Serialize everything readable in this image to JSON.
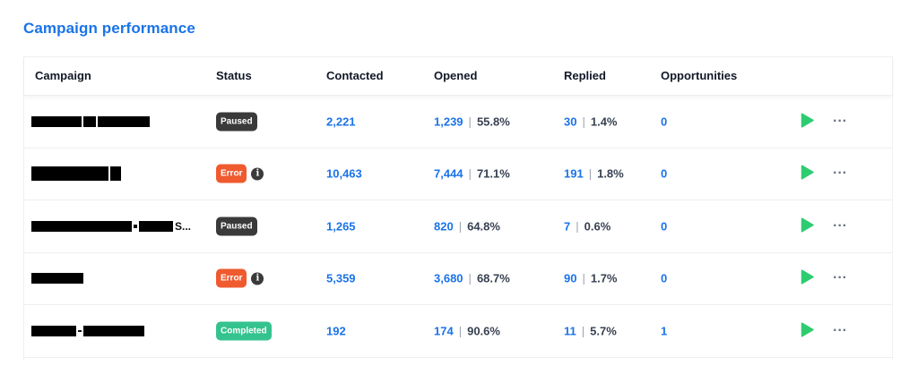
{
  "title": "Campaign performance",
  "headers": {
    "campaign": "Campaign",
    "status": "Status",
    "contacted": "Contacted",
    "opened": "Opened",
    "replied": "Replied",
    "opportunities": "Opportunities"
  },
  "colors": {
    "accent": "#1a73e8",
    "paused": "#3a3a3a",
    "error": "#ef5a2e",
    "completed": "#34c38f",
    "play": "#2ecc71"
  },
  "rows": [
    {
      "name_suffix": "",
      "status": "Paused",
      "status_class": "paused",
      "info": false,
      "contacted": "2,221",
      "opened": "1,239",
      "opened_pct": "55.8%",
      "replied": "30",
      "replied_pct": "1.4%",
      "opportunities": "0"
    },
    {
      "name_suffix": "",
      "status": "Error",
      "status_class": "error",
      "info": true,
      "contacted": "10,463",
      "opened": "7,444",
      "opened_pct": "71.1%",
      "replied": "191",
      "replied_pct": "1.8%",
      "opportunities": "0"
    },
    {
      "name_suffix": "S...",
      "status": "Paused",
      "status_class": "paused",
      "info": false,
      "contacted": "1,265",
      "opened": "820",
      "opened_pct": "64.8%",
      "replied": "7",
      "replied_pct": "0.6%",
      "opportunities": "0"
    },
    {
      "name_suffix": "",
      "status": "Error",
      "status_class": "error",
      "info": true,
      "contacted": "5,359",
      "opened": "3,680",
      "opened_pct": "68.7%",
      "replied": "90",
      "replied_pct": "1.7%",
      "opportunities": "0"
    },
    {
      "name_suffix": "",
      "status": "Completed",
      "status_class": "completed",
      "info": false,
      "contacted": "192",
      "opened": "174",
      "opened_pct": "90.6%",
      "replied": "11",
      "replied_pct": "5.7%",
      "opportunities": "1"
    }
  ],
  "icons": {
    "play": "play-icon",
    "more": "more-icon",
    "info": "info-icon"
  },
  "more_glyph": "···",
  "info_glyph": "i"
}
